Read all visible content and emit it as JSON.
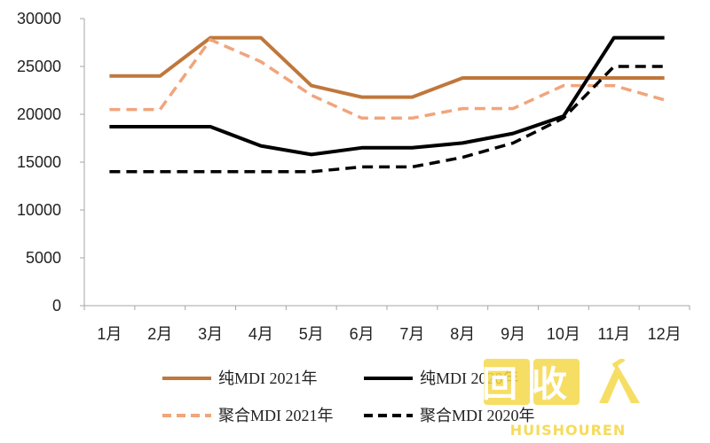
{
  "chart_data": {
    "type": "line",
    "categories": [
      "1月",
      "2月",
      "3月",
      "4月",
      "5月",
      "6月",
      "7月",
      "8月",
      "9月",
      "10月",
      "11月",
      "12月"
    ],
    "ylim": [
      0,
      30000
    ],
    "yticks": [
      0,
      5000,
      10000,
      15000,
      20000,
      25000,
      30000
    ],
    "grid": false,
    "legend_position": "bottom",
    "series": [
      {
        "name": "纯MDI 2021年",
        "color": "#c0773b",
        "dash": "solid",
        "values": [
          24000,
          24000,
          28000,
          28000,
          23000,
          21800,
          21800,
          23800,
          23800,
          23800,
          23800,
          23800
        ]
      },
      {
        "name": "纯MDI 2020年",
        "color": "#000000",
        "dash": "solid",
        "values": [
          18700,
          18700,
          18700,
          16700,
          15800,
          16500,
          16500,
          17000,
          18000,
          19800,
          28000,
          28000
        ]
      },
      {
        "name": "聚合MDI 2021年",
        "color": "#f0a57c",
        "dash": "dashed",
        "values": [
          20500,
          20500,
          27800,
          25500,
          22000,
          19600,
          19600,
          20600,
          20600,
          23000,
          23000,
          21500
        ]
      },
      {
        "name": "聚合MDI 2020年",
        "color": "#000000",
        "dash": "dashed",
        "values": [
          14000,
          14000,
          14000,
          14000,
          14000,
          14500,
          14500,
          15500,
          17000,
          19600,
          25000,
          25000
        ]
      }
    ]
  },
  "watermark": {
    "glyphs": "回收",
    "brand": "HUISHOUREN",
    "logo_icon": "recycle-logo-icon"
  }
}
